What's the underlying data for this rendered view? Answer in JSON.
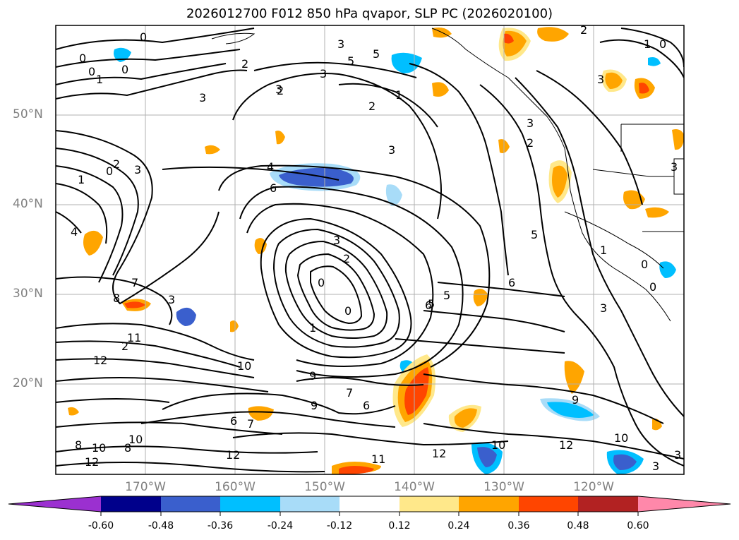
{
  "title": "2026012700 F012 850 hPa qvapor, SLP PC (2026020100)",
  "lat_labels": [
    "50°N",
    "40°N",
    "30°N",
    "20°N"
  ],
  "lon_labels": [
    "170°W",
    "160°W",
    "150°W",
    "140°W",
    "130°W",
    "120°W"
  ],
  "colorbar": {
    "ticks": [
      "-0.60",
      "-0.48",
      "-0.36",
      "-0.24",
      "-0.12",
      "0.12",
      "0.24",
      "0.36",
      "0.48",
      "0.60"
    ],
    "colors": [
      "#9b30d0",
      "#00008b",
      "#3a5fcd",
      "#00bfff",
      "#a8dcf8",
      "#ffffff",
      "#ffe88a",
      "#ffa500",
      "#ff4500",
      "#b22222",
      "#ff88aa"
    ]
  },
  "contour_labels": [
    "0",
    "0",
    "0",
    "0",
    "1",
    "2",
    "3",
    "3",
    "3",
    "3",
    "2",
    "5",
    "5",
    "1",
    "2",
    "3",
    "4",
    "6",
    "2",
    "3",
    "2",
    "3",
    "1",
    "0",
    "4",
    "7",
    "8",
    "3",
    "11",
    "12",
    "12",
    "10",
    "9",
    "7",
    "6",
    "9",
    "6",
    "7",
    "8",
    "10",
    "8",
    "12",
    "10",
    "11",
    "12",
    "10",
    "12",
    "10",
    "9",
    "3",
    "6",
    "5",
    "1",
    "0",
    "0",
    "1",
    "3",
    "2",
    "3",
    "6",
    "5",
    "5",
    "0",
    "2",
    "3",
    "1",
    "0",
    "12",
    "2",
    "0",
    "3",
    "3"
  ],
  "chart_data": {
    "type": "map",
    "variable": "850 hPa qvapor, SLP PC",
    "lon_range": [
      -180,
      -110
    ],
    "lat_range": [
      10,
      60
    ],
    "lon_ticks": [
      -170,
      -160,
      -150,
      -140,
      -130,
      -120
    ],
    "lat_ticks": [
      20,
      30,
      40,
      50
    ],
    "color_levels": [
      -0.6,
      -0.48,
      -0.36,
      -0.24,
      -0.12,
      0.12,
      0.24,
      0.36,
      0.48,
      0.6
    ],
    "grid": true
  }
}
